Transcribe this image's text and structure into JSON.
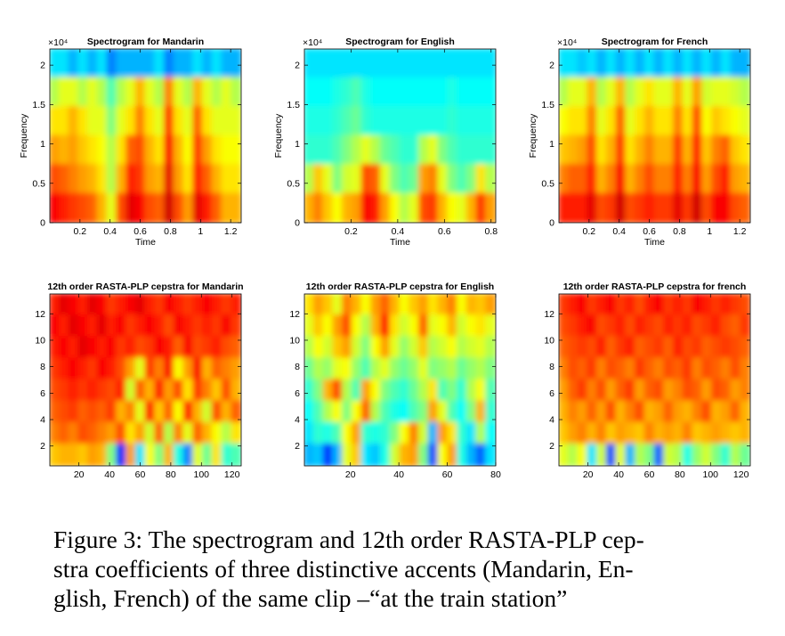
{
  "caption": "Figure 3: The spectrogram and 12th order RASTA-PLP cep-stra coefficients of three distinctive accents (Mandarin, En-glish, French) of the same clip –“at the train station”",
  "caption_lines": [
    "Figure 3: The spectrogram and 12th order RASTA-PLP cep-",
    "stra coefficients of three distinctive accents (Mandarin, En-",
    "glish, French) of the same clip –“at the train station”"
  ],
  "colors": {
    "colormap": "jet",
    "low": "#00008f",
    "mid": "#80ff80",
    "high": "#800000"
  },
  "chart_data": [
    {
      "type": "heatmap",
      "title": "Spectrogram for Mandarin",
      "xlabel": "Time",
      "ylabel": "Frequency",
      "xlim": [
        0,
        1.27
      ],
      "ylim": [
        0,
        22050
      ],
      "xticks": [
        "0.2",
        "0.4",
        "0.6",
        "0.8",
        "1",
        "1.2"
      ],
      "yticks": [
        "0",
        "0.5",
        "1",
        "1.5",
        "2"
      ],
      "yexponent": "×10⁴",
      "intensity_cols": 20,
      "intensity_rows": 6,
      "intensity": [
        [
          0.35,
          0.35,
          0.3,
          0.35,
          0.3,
          0.35,
          0.25,
          0.3,
          0.3,
          0.3,
          0.3,
          0.35,
          0.25,
          0.3,
          0.3,
          0.35,
          0.3,
          0.35,
          0.3,
          0.3
        ],
        [
          0.55,
          0.6,
          0.6,
          0.55,
          0.6,
          0.55,
          0.45,
          0.55,
          0.6,
          0.7,
          0.6,
          0.55,
          0.75,
          0.6,
          0.55,
          0.7,
          0.6,
          0.55,
          0.6,
          0.55
        ],
        [
          0.65,
          0.65,
          0.7,
          0.65,
          0.6,
          0.6,
          0.5,
          0.6,
          0.65,
          0.75,
          0.65,
          0.6,
          0.82,
          0.65,
          0.6,
          0.78,
          0.65,
          0.6,
          0.6,
          0.6
        ],
        [
          0.72,
          0.7,
          0.72,
          0.68,
          0.65,
          0.62,
          0.55,
          0.65,
          0.78,
          0.8,
          0.7,
          0.65,
          0.88,
          0.7,
          0.62,
          0.82,
          0.72,
          0.65,
          0.62,
          0.62
        ],
        [
          0.8,
          0.78,
          0.75,
          0.72,
          0.7,
          0.65,
          0.55,
          0.7,
          0.85,
          0.82,
          0.72,
          0.7,
          0.9,
          0.72,
          0.65,
          0.85,
          0.78,
          0.7,
          0.65,
          0.65
        ],
        [
          0.88,
          0.85,
          0.82,
          0.8,
          0.78,
          0.7,
          0.6,
          0.8,
          0.9,
          0.88,
          0.8,
          0.78,
          0.92,
          0.8,
          0.72,
          0.9,
          0.85,
          0.78,
          0.7,
          0.7
        ]
      ]
    },
    {
      "type": "heatmap",
      "title": "Spectrogram for English",
      "xlabel": "Time",
      "ylabel": "Frequency",
      "xlim": [
        0,
        0.82
      ],
      "ylim": [
        0,
        22050
      ],
      "xticks": [
        "0.2",
        "0.4",
        "0.6",
        "0.8"
      ],
      "yticks": [
        "0",
        "0.5",
        "1",
        "1.5",
        "2"
      ],
      "yexponent": "×10⁴",
      "intensity_cols": 20,
      "intensity_rows": 6,
      "intensity": [
        [
          0.35,
          0.35,
          0.35,
          0.35,
          0.35,
          0.35,
          0.35,
          0.35,
          0.35,
          0.35,
          0.35,
          0.35,
          0.35,
          0.35,
          0.35,
          0.35,
          0.35,
          0.35,
          0.35,
          0.35
        ],
        [
          0.38,
          0.38,
          0.38,
          0.4,
          0.42,
          0.45,
          0.4,
          0.38,
          0.38,
          0.38,
          0.38,
          0.38,
          0.38,
          0.38,
          0.38,
          0.4,
          0.38,
          0.38,
          0.38,
          0.38
        ],
        [
          0.4,
          0.4,
          0.4,
          0.42,
          0.45,
          0.48,
          0.42,
          0.4,
          0.4,
          0.4,
          0.4,
          0.4,
          0.4,
          0.4,
          0.4,
          0.42,
          0.4,
          0.4,
          0.4,
          0.4
        ],
        [
          0.42,
          0.42,
          0.42,
          0.45,
          0.5,
          0.55,
          0.6,
          0.55,
          0.48,
          0.45,
          0.42,
          0.42,
          0.55,
          0.6,
          0.5,
          0.45,
          0.42,
          0.42,
          0.42,
          0.42
        ],
        [
          0.55,
          0.68,
          0.6,
          0.5,
          0.58,
          0.6,
          0.8,
          0.78,
          0.6,
          0.5,
          0.45,
          0.48,
          0.72,
          0.75,
          0.6,
          0.5,
          0.45,
          0.5,
          0.65,
          0.55
        ],
        [
          0.7,
          0.75,
          0.68,
          0.62,
          0.7,
          0.72,
          0.88,
          0.85,
          0.72,
          0.62,
          0.55,
          0.6,
          0.8,
          0.82,
          0.7,
          0.62,
          0.6,
          0.7,
          0.82,
          0.72
        ]
      ]
    },
    {
      "type": "heatmap",
      "title": "Spectrogram for French",
      "xlabel": "Time",
      "ylabel": "Frequency",
      "xlim": [
        0,
        1.27
      ],
      "ylim": [
        0,
        22050
      ],
      "xticks": [
        "0.2",
        "0.4",
        "0.6",
        "0.8",
        "1",
        "1.2"
      ],
      "yticks": [
        "0",
        "0.5",
        "1",
        "1.5",
        "2"
      ],
      "yexponent": "×10⁴",
      "intensity_cols": 20,
      "intensity_rows": 6,
      "intensity": [
        [
          0.35,
          0.35,
          0.32,
          0.35,
          0.3,
          0.35,
          0.3,
          0.35,
          0.3,
          0.35,
          0.3,
          0.35,
          0.3,
          0.35,
          0.3,
          0.35,
          0.3,
          0.35,
          0.3,
          0.3
        ],
        [
          0.55,
          0.6,
          0.6,
          0.7,
          0.55,
          0.6,
          0.7,
          0.55,
          0.6,
          0.65,
          0.6,
          0.6,
          0.7,
          0.6,
          0.72,
          0.58,
          0.6,
          0.6,
          0.58,
          0.55
        ],
        [
          0.62,
          0.65,
          0.65,
          0.75,
          0.6,
          0.65,
          0.78,
          0.6,
          0.65,
          0.7,
          0.65,
          0.65,
          0.75,
          0.65,
          0.8,
          0.62,
          0.68,
          0.65,
          0.62,
          0.6
        ],
        [
          0.68,
          0.7,
          0.72,
          0.8,
          0.65,
          0.7,
          0.82,
          0.65,
          0.7,
          0.75,
          0.7,
          0.7,
          0.82,
          0.7,
          0.85,
          0.68,
          0.75,
          0.78,
          0.68,
          0.65
        ],
        [
          0.75,
          0.78,
          0.78,
          0.85,
          0.7,
          0.75,
          0.88,
          0.7,
          0.75,
          0.8,
          0.75,
          0.75,
          0.85,
          0.75,
          0.88,
          0.72,
          0.8,
          0.85,
          0.72,
          0.7
        ],
        [
          0.85,
          0.85,
          0.85,
          0.9,
          0.8,
          0.82,
          0.92,
          0.8,
          0.82,
          0.85,
          0.82,
          0.82,
          0.9,
          0.82,
          0.92,
          0.8,
          0.88,
          0.88,
          0.8,
          0.78
        ]
      ]
    },
    {
      "type": "heatmap",
      "title": "12th order RASTA-PLP cepstra for Mandarin",
      "xlabel": "",
      "ylabel": "",
      "xlim": [
        1,
        126
      ],
      "ylim": [
        0.5,
        13.5
      ],
      "xticks": [
        "20",
        "40",
        "60",
        "80",
        "100",
        "120"
      ],
      "yticks": [
        "2",
        "4",
        "6",
        "8",
        "10",
        "12"
      ],
      "intensity_cols": 20,
      "intensity_rows": 8,
      "intensity": [
        [
          0.85,
          0.9,
          0.88,
          0.85,
          0.9,
          0.88,
          0.82,
          0.85,
          0.88,
          0.9,
          0.85,
          0.82,
          0.88,
          0.85,
          0.82,
          0.85,
          0.88,
          0.85,
          0.82,
          0.85
        ],
        [
          0.88,
          0.85,
          0.9,
          0.88,
          0.85,
          0.9,
          0.85,
          0.88,
          0.82,
          0.85,
          0.88,
          0.85,
          0.8,
          0.88,
          0.85,
          0.82,
          0.85,
          0.82,
          0.88,
          0.82
        ],
        [
          0.85,
          0.88,
          0.85,
          0.9,
          0.88,
          0.85,
          0.88,
          0.82,
          0.85,
          0.8,
          0.82,
          0.88,
          0.85,
          0.78,
          0.88,
          0.8,
          0.82,
          0.85,
          0.8,
          0.78
        ],
        [
          0.82,
          0.85,
          0.88,
          0.85,
          0.82,
          0.88,
          0.85,
          0.8,
          0.72,
          0.6,
          0.82,
          0.75,
          0.88,
          0.62,
          0.72,
          0.88,
          0.7,
          0.78,
          0.75,
          0.72
        ],
        [
          0.8,
          0.82,
          0.85,
          0.82,
          0.85,
          0.82,
          0.8,
          0.85,
          0.58,
          0.78,
          0.7,
          0.85,
          0.72,
          0.8,
          0.65,
          0.82,
          0.75,
          0.68,
          0.8,
          0.7
        ],
        [
          0.78,
          0.8,
          0.82,
          0.78,
          0.8,
          0.78,
          0.82,
          0.7,
          0.75,
          0.6,
          0.85,
          0.68,
          0.78,
          0.62,
          0.85,
          0.7,
          0.58,
          0.8,
          0.7,
          0.78
        ],
        [
          0.75,
          0.78,
          0.75,
          0.8,
          0.78,
          0.75,
          0.72,
          0.8,
          0.65,
          0.72,
          0.58,
          0.78,
          0.55,
          0.75,
          0.6,
          0.78,
          0.7,
          0.62,
          0.55,
          0.65
        ],
        [
          0.68,
          0.7,
          0.7,
          0.68,
          0.72,
          0.7,
          0.5,
          0.15,
          0.72,
          0.35,
          0.62,
          0.5,
          0.7,
          0.4,
          0.25,
          0.6,
          0.48,
          0.65,
          0.42,
          0.45
        ]
      ]
    },
    {
      "type": "heatmap",
      "title": "12th order RASTA-PLP cepstra for English",
      "xlabel": "",
      "ylabel": "",
      "xlim": [
        1,
        80
      ],
      "ylim": [
        0.5,
        13.5
      ],
      "xticks": [
        "20",
        "40",
        "60",
        "80"
      ],
      "yticks": [
        "2",
        "4",
        "6",
        "8",
        "10",
        "12"
      ],
      "intensity_cols": 20,
      "intensity_rows": 8,
      "intensity": [
        [
          0.65,
          0.72,
          0.68,
          0.6,
          0.75,
          0.7,
          0.62,
          0.72,
          0.78,
          0.7,
          0.62,
          0.68,
          0.72,
          0.65,
          0.7,
          0.75,
          0.62,
          0.7,
          0.68,
          0.72
        ],
        [
          0.6,
          0.68,
          0.62,
          0.72,
          0.8,
          0.62,
          0.55,
          0.7,
          0.85,
          0.65,
          0.58,
          0.62,
          0.78,
          0.6,
          0.62,
          0.7,
          0.58,
          0.62,
          0.65,
          0.6
        ],
        [
          0.55,
          0.62,
          0.58,
          0.68,
          0.72,
          0.58,
          0.5,
          0.62,
          0.72,
          0.6,
          0.52,
          0.58,
          0.68,
          0.55,
          0.58,
          0.62,
          0.55,
          0.58,
          0.6,
          0.55
        ],
        [
          0.48,
          0.55,
          0.52,
          0.6,
          0.62,
          0.52,
          0.45,
          0.55,
          0.6,
          0.52,
          0.48,
          0.52,
          0.6,
          0.5,
          0.52,
          0.55,
          0.48,
          0.52,
          0.55,
          0.5
        ],
        [
          0.42,
          0.5,
          0.7,
          0.8,
          0.55,
          0.45,
          0.72,
          0.62,
          0.5,
          0.45,
          0.42,
          0.48,
          0.55,
          0.65,
          0.45,
          0.5,
          0.42,
          0.55,
          0.62,
          0.45
        ],
        [
          0.38,
          0.45,
          0.55,
          0.62,
          0.5,
          0.62,
          0.78,
          0.55,
          0.45,
          0.4,
          0.38,
          0.45,
          0.5,
          0.72,
          0.6,
          0.45,
          0.38,
          0.5,
          0.7,
          0.42
        ],
        [
          0.35,
          0.42,
          0.4,
          0.45,
          0.62,
          0.72,
          0.42,
          0.4,
          0.42,
          0.5,
          0.62,
          0.75,
          0.58,
          0.3,
          0.72,
          0.65,
          0.42,
          0.35,
          0.55,
          0.38
        ],
        [
          0.3,
          0.32,
          0.18,
          0.3,
          0.6,
          0.68,
          0.35,
          0.32,
          0.4,
          0.58,
          0.7,
          0.72,
          0.5,
          0.2,
          0.62,
          0.72,
          0.4,
          0.3,
          0.22,
          0.35
        ]
      ]
    },
    {
      "type": "heatmap",
      "title": "12th order RASTA-PLP cepstra for french",
      "xlabel": "",
      "ylabel": "",
      "xlim": [
        1,
        126
      ],
      "ylim": [
        0.5,
        13.5
      ],
      "xticks": [
        "20",
        "40",
        "60",
        "80",
        "100",
        "120"
      ],
      "yticks": [
        "2",
        "4",
        "6",
        "8",
        "10",
        "12"
      ],
      "intensity_cols": 20,
      "intensity_rows": 8,
      "intensity": [
        [
          0.82,
          0.85,
          0.88,
          0.82,
          0.85,
          0.88,
          0.82,
          0.85,
          0.8,
          0.85,
          0.88,
          0.82,
          0.85,
          0.82,
          0.88,
          0.85,
          0.82,
          0.85,
          0.82,
          0.8
        ],
        [
          0.8,
          0.82,
          0.85,
          0.88,
          0.8,
          0.82,
          0.85,
          0.8,
          0.85,
          0.82,
          0.8,
          0.85,
          0.82,
          0.85,
          0.8,
          0.82,
          0.85,
          0.8,
          0.78,
          0.82
        ],
        [
          0.78,
          0.8,
          0.82,
          0.8,
          0.85,
          0.78,
          0.82,
          0.85,
          0.78,
          0.8,
          0.82,
          0.78,
          0.85,
          0.8,
          0.82,
          0.78,
          0.8,
          0.82,
          0.8,
          0.78
        ],
        [
          0.75,
          0.8,
          0.78,
          0.82,
          0.75,
          0.8,
          0.78,
          0.75,
          0.82,
          0.78,
          0.75,
          0.8,
          0.78,
          0.82,
          0.75,
          0.8,
          0.78,
          0.75,
          0.8,
          0.75
        ],
        [
          0.72,
          0.78,
          0.82,
          0.75,
          0.8,
          0.72,
          0.78,
          0.82,
          0.72,
          0.78,
          0.8,
          0.72,
          0.75,
          0.8,
          0.78,
          0.72,
          0.8,
          0.78,
          0.72,
          0.75
        ],
        [
          0.7,
          0.75,
          0.72,
          0.78,
          0.72,
          0.8,
          0.7,
          0.75,
          0.8,
          0.7,
          0.72,
          0.78,
          0.72,
          0.7,
          0.75,
          0.8,
          0.7,
          0.72,
          0.78,
          0.7
        ],
        [
          0.68,
          0.72,
          0.75,
          0.7,
          0.75,
          0.68,
          0.72,
          0.7,
          0.68,
          0.75,
          0.7,
          0.72,
          0.7,
          0.75,
          0.68,
          0.7,
          0.72,
          0.7,
          0.68,
          0.7
        ],
        [
          0.6,
          0.55,
          0.62,
          0.35,
          0.58,
          0.2,
          0.6,
          0.3,
          0.55,
          0.5,
          0.22,
          0.58,
          0.55,
          0.4,
          0.52,
          0.58,
          0.5,
          0.42,
          0.55,
          0.48
        ]
      ]
    }
  ]
}
